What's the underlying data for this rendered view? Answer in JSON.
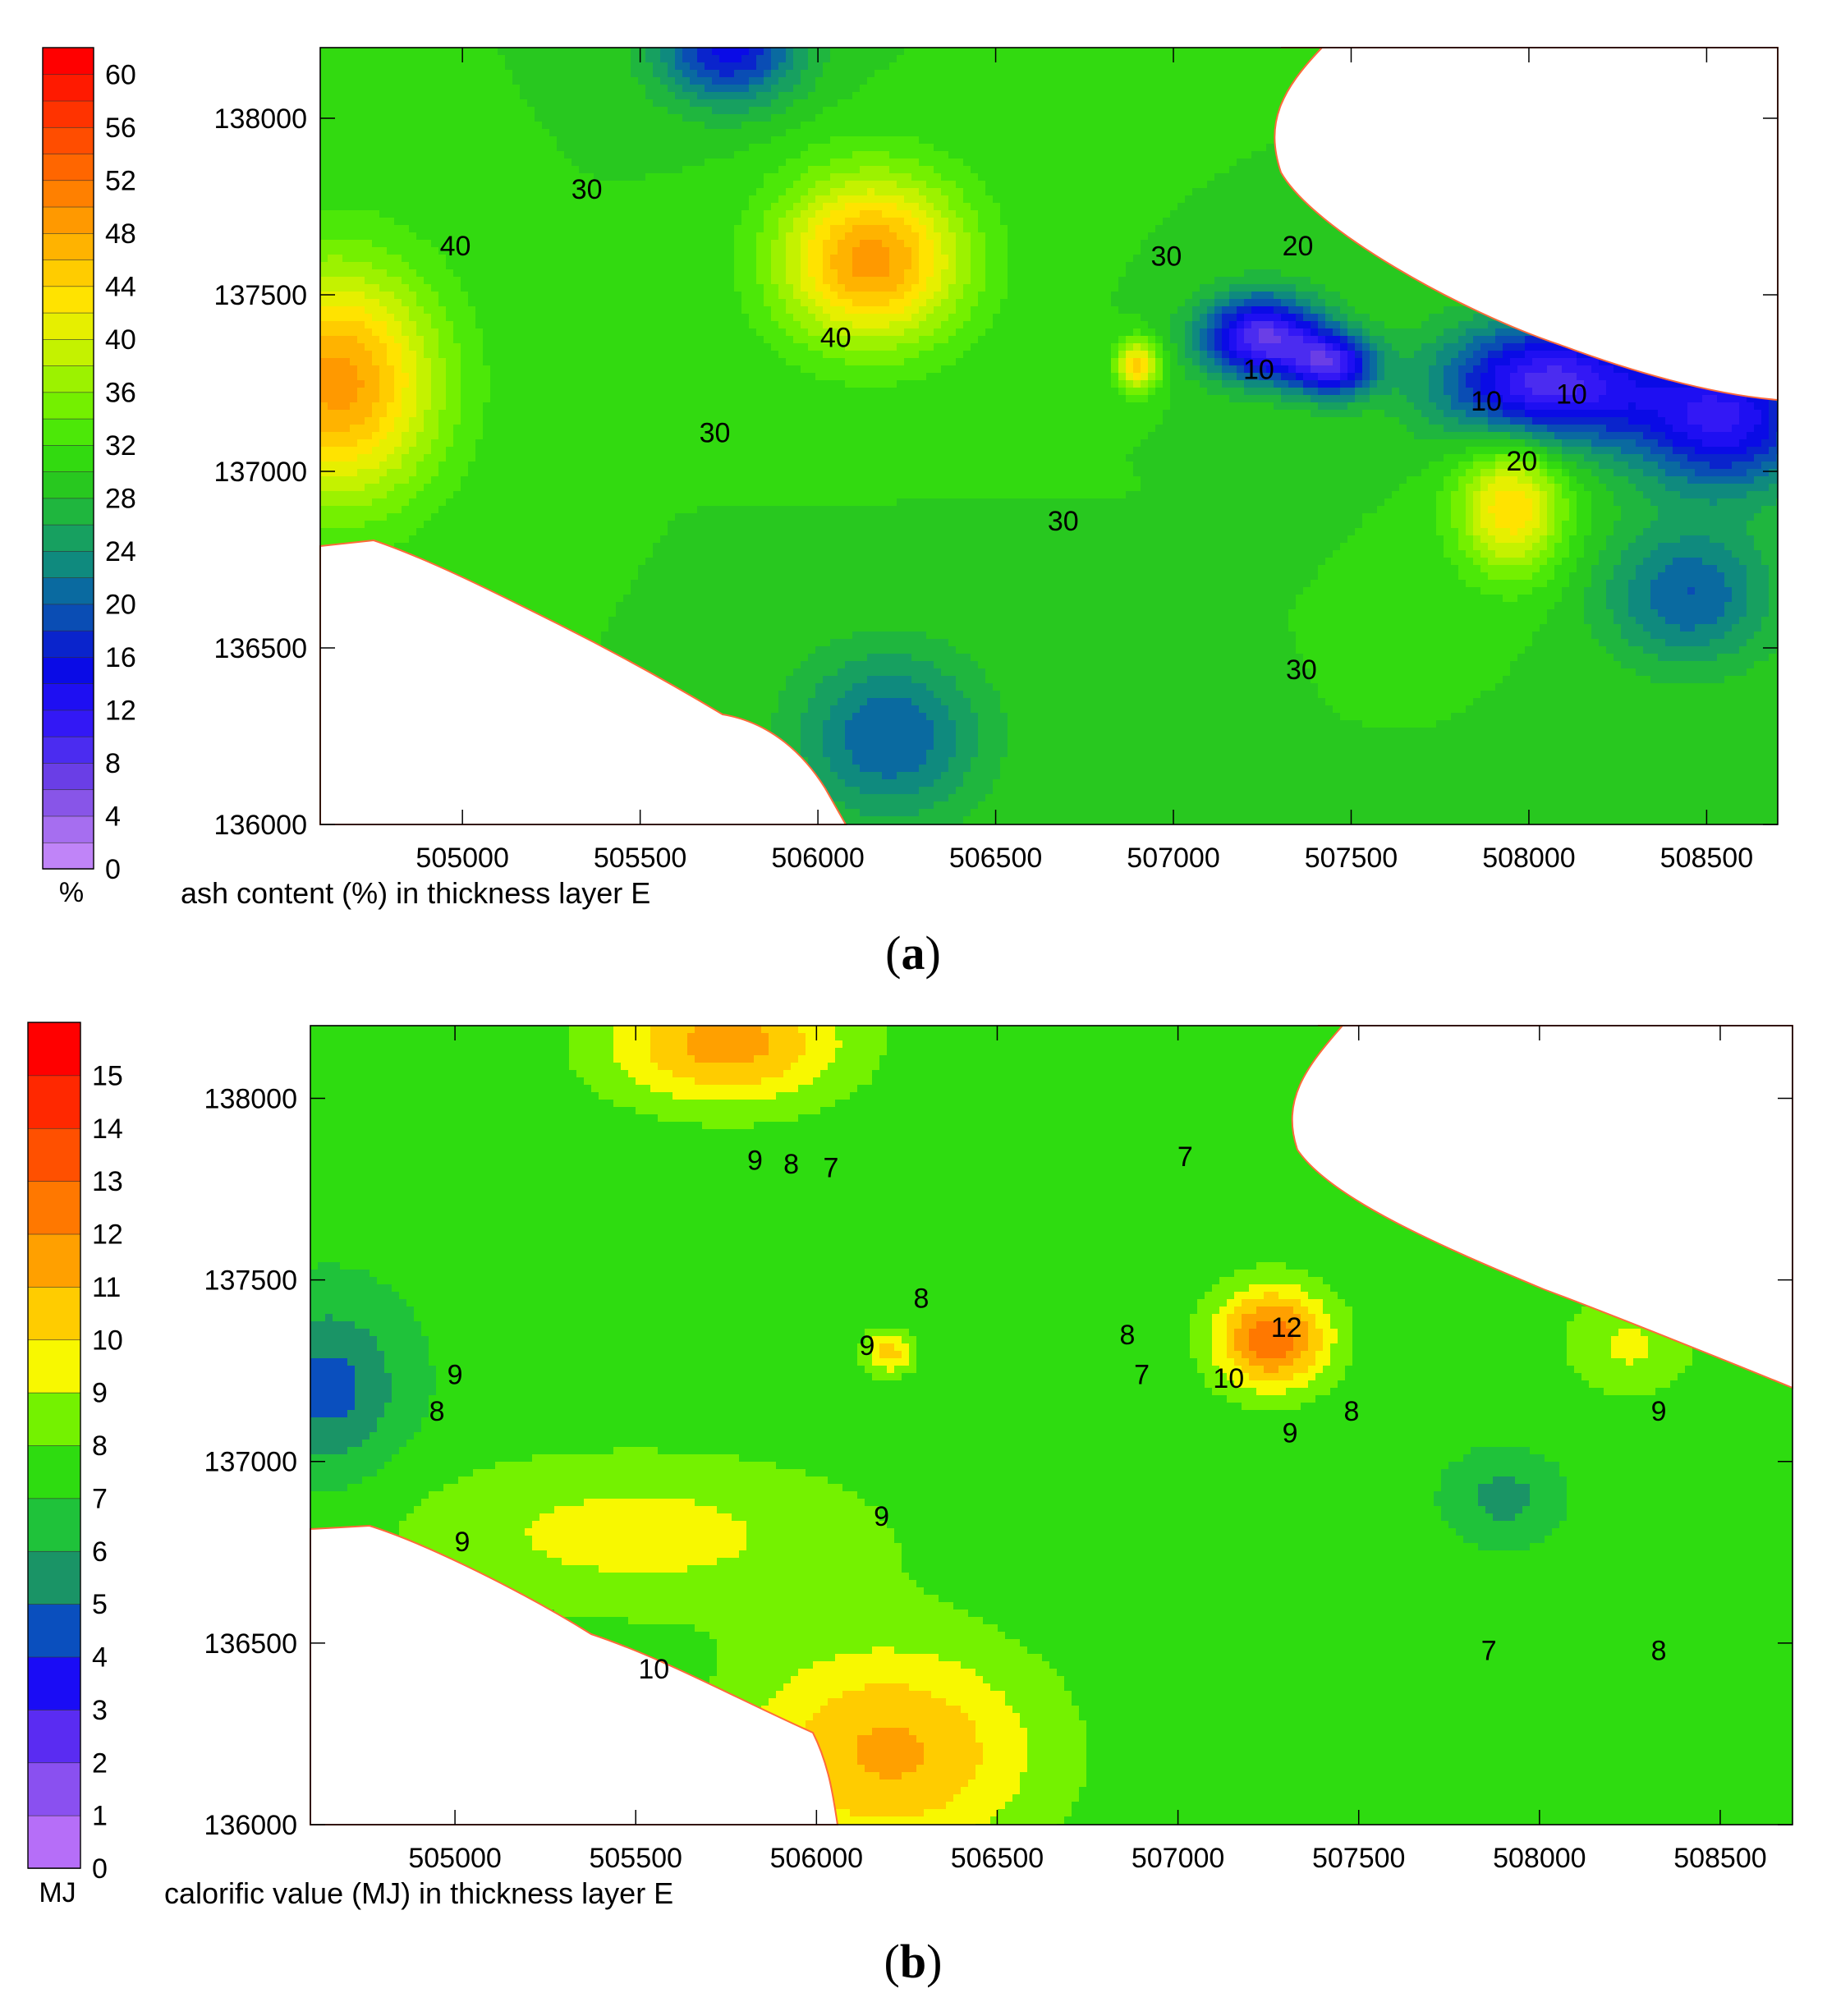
{
  "chart_data": [
    {
      "type": "heatmap",
      "panel_label": "(a)",
      "panel_letter": "a",
      "xlabel": "ash content (%) in thickness layer E",
      "xlim": [
        504600,
        508700
      ],
      "ylim": [
        136000,
        138200
      ],
      "x_ticks": [
        505000,
        505500,
        506000,
        506500,
        507000,
        507500,
        508000,
        508500
      ],
      "y_ticks": [
        136000,
        136500,
        137000,
        137500,
        138000
      ],
      "colorbar": {
        "unit": "%",
        "levels": [
          0,
          2,
          4,
          6,
          8,
          10,
          12,
          14,
          16,
          18,
          20,
          22,
          24,
          26,
          28,
          30,
          32,
          34,
          36,
          38,
          40,
          42,
          44,
          46,
          48,
          50,
          52,
          54,
          56,
          58,
          60,
          62
        ],
        "tick_labels": [
          0,
          4,
          8,
          12,
          16,
          20,
          24,
          28,
          32,
          36,
          40,
          44,
          48,
          52,
          56,
          60
        ],
        "colors": [
          "#c084f8",
          "#a66ef0",
          "#8855e8",
          "#6a3ee6",
          "#4b2cf0",
          "#3318f5",
          "#1e0ff2",
          "#0a0be6",
          "#0a24cc",
          "#0a4db4",
          "#0a6aa0",
          "#0f8a7e",
          "#17a060",
          "#1fb63e",
          "#28c81f",
          "#32da10",
          "#4ce808",
          "#74f000",
          "#9cf200",
          "#c4f200",
          "#e6ef00",
          "#ffe300",
          "#ffcc00",
          "#ffb300",
          "#ff9900",
          "#ff8000",
          "#ff6600",
          "#ff4d00",
          "#ff3300",
          "#ff1a00",
          "#ff0000"
        ]
      },
      "field": {
        "base": 30,
        "features": [
          {
            "x": 504650,
            "y": 137250,
            "value": 49,
            "sx": 280,
            "sy": 330
          },
          {
            "x": 506150,
            "y": 137600,
            "value": 49,
            "sx": 260,
            "sy": 240
          },
          {
            "x": 505750,
            "y": 138200,
            "value": 15,
            "sx": 200,
            "sy": 160
          },
          {
            "x": 507250,
            "y": 137380,
            "value": 8,
            "sx": 170,
            "sy": 120
          },
          {
            "x": 507450,
            "y": 137300,
            "value": 12,
            "sx": 120,
            "sy": 90
          },
          {
            "x": 508050,
            "y": 137250,
            "value": 9,
            "sx": 300,
            "sy": 170
          },
          {
            "x": 508550,
            "y": 137150,
            "value": 12,
            "sx": 260,
            "sy": 200
          },
          {
            "x": 508450,
            "y": 136650,
            "value": 20,
            "sx": 240,
            "sy": 200
          },
          {
            "x": 507950,
            "y": 136900,
            "value": 44,
            "sx": 150,
            "sy": 190
          },
          {
            "x": 506900,
            "y": 137300,
            "value": 45,
            "sx": 60,
            "sy": 70
          },
          {
            "x": 506200,
            "y": 136250,
            "value": 20,
            "sx": 260,
            "sy": 240
          }
        ]
      },
      "contour_labels": [
        {
          "text": "30",
          "x": 505350,
          "y": 137800
        },
        {
          "text": "40",
          "x": 504980,
          "y": 137640
        },
        {
          "text": "40",
          "x": 506050,
          "y": 137380
        },
        {
          "text": "30",
          "x": 505710,
          "y": 137110
        },
        {
          "text": "30",
          "x": 506690,
          "y": 136860
        },
        {
          "text": "30",
          "x": 506980,
          "y": 137610
        },
        {
          "text": "20",
          "x": 507350,
          "y": 137640
        },
        {
          "text": "10",
          "x": 507240,
          "y": 137290
        },
        {
          "text": "10",
          "x": 507880,
          "y": 137200
        },
        {
          "text": "10",
          "x": 508120,
          "y": 137220
        },
        {
          "text": "20",
          "x": 507980,
          "y": 137030
        },
        {
          "text": "30",
          "x": 507360,
          "y": 136440
        }
      ]
    },
    {
      "type": "heatmap",
      "panel_label": "(b)",
      "panel_letter": "b",
      "xlabel": "calorific value (MJ) in thickness layer E",
      "xlim": [
        504600,
        508700
      ],
      "ylim": [
        136000,
        138200
      ],
      "x_ticks": [
        505000,
        505500,
        506000,
        506500,
        507000,
        507500,
        508000,
        508500
      ],
      "y_ticks": [
        136000,
        136500,
        137000,
        137500,
        138000
      ],
      "colorbar": {
        "unit": "MJ",
        "levels": [
          0,
          1,
          2,
          3,
          4,
          5,
          6,
          7,
          8,
          9,
          10,
          11,
          12,
          13,
          14,
          15,
          16
        ],
        "tick_labels": [
          0,
          1,
          2,
          3,
          4,
          5,
          6,
          7,
          8,
          9,
          10,
          11,
          12,
          13,
          14,
          15
        ],
        "colors": [
          "#b66ef8",
          "#8a50f0",
          "#5a2cf2",
          "#1a0cf5",
          "#0a4fbe",
          "#1a9466",
          "#1fc23a",
          "#2edc10",
          "#74f200",
          "#f8f800",
          "#ffcc00",
          "#ffa000",
          "#ff7800",
          "#ff5000",
          "#ff2800",
          "#ff0000"
        ]
      },
      "field": {
        "base": 7.3,
        "features": [
          {
            "x": 504650,
            "y": 137200,
            "value": 4.6,
            "sx": 200,
            "sy": 230
          },
          {
            "x": 505750,
            "y": 138150,
            "value": 11.5,
            "sx": 330,
            "sy": 170
          },
          {
            "x": 506200,
            "y": 136200,
            "value": 11.2,
            "sx": 420,
            "sy": 300
          },
          {
            "x": 505500,
            "y": 136800,
            "value": 9.4,
            "sx": 650,
            "sy": 220
          },
          {
            "x": 507260,
            "y": 137340,
            "value": 12.8,
            "sx": 160,
            "sy": 140
          },
          {
            "x": 508250,
            "y": 137320,
            "value": 9.2,
            "sx": 180,
            "sy": 140
          },
          {
            "x": 507900,
            "y": 136900,
            "value": 5.6,
            "sx": 140,
            "sy": 110
          },
          {
            "x": 506200,
            "y": 137300,
            "value": 10.5,
            "sx": 70,
            "sy": 60
          }
        ]
      },
      "contour_labels": [
        {
          "text": "9",
          "x": 505830,
          "y": 137830
        },
        {
          "text": "8",
          "x": 505930,
          "y": 137820
        },
        {
          "text": "7",
          "x": 506040,
          "y": 137810
        },
        {
          "text": "7",
          "x": 507020,
          "y": 137840
        },
        {
          "text": "8",
          "x": 506290,
          "y": 137450
        },
        {
          "text": "9",
          "x": 506140,
          "y": 137320
        },
        {
          "text": "8",
          "x": 506860,
          "y": 137350
        },
        {
          "text": "7",
          "x": 506900,
          "y": 137240
        },
        {
          "text": "10",
          "x": 507140,
          "y": 137230
        },
        {
          "text": "12",
          "x": 507300,
          "y": 137370
        },
        {
          "text": "9",
          "x": 507310,
          "y": 137080
        },
        {
          "text": "8",
          "x": 507480,
          "y": 137140
        },
        {
          "text": "9",
          "x": 508330,
          "y": 137140
        },
        {
          "text": "9",
          "x": 505000,
          "y": 137240
        },
        {
          "text": "8",
          "x": 504950,
          "y": 137140
        },
        {
          "text": "9",
          "x": 505020,
          "y": 136780
        },
        {
          "text": "9",
          "x": 506180,
          "y": 136850
        },
        {
          "text": "10",
          "x": 505550,
          "y": 136430
        },
        {
          "text": "7",
          "x": 507860,
          "y": 136480
        },
        {
          "text": "8",
          "x": 508330,
          "y": 136480
        }
      ]
    }
  ]
}
